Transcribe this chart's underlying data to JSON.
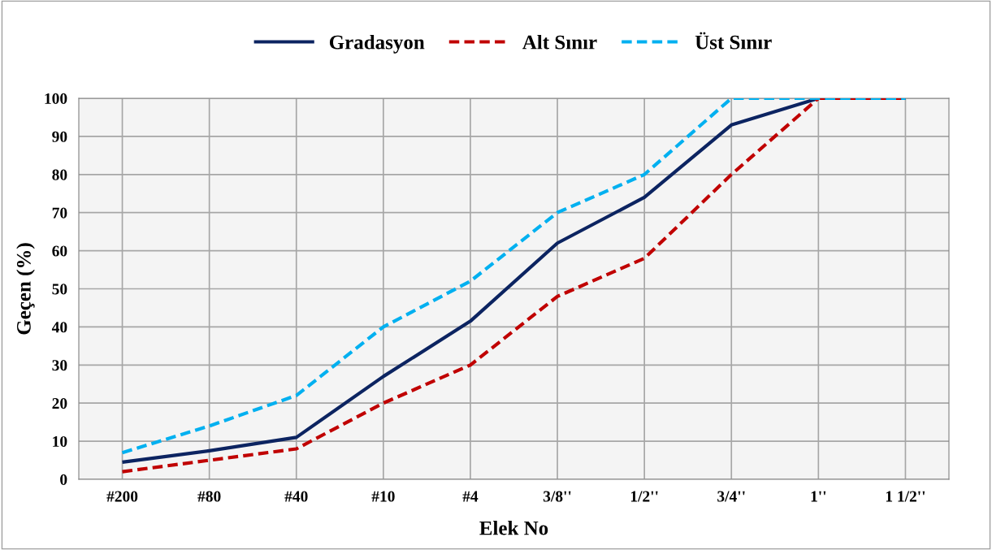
{
  "chart_data": {
    "type": "line",
    "xlabel": "Elek No",
    "ylabel": "Geçen (%)",
    "categories": [
      "#200",
      "#80",
      "#40",
      "#10",
      "#4",
      "3/8''",
      "1/2''",
      "3/4''",
      "1''",
      "1 1/2''"
    ],
    "series": [
      {
        "name": "Gradasyon",
        "color": "#0c2461",
        "line_style": "solid",
        "values": [
          4.5,
          7.5,
          11,
          27,
          41.5,
          62,
          74,
          93,
          100,
          100
        ]
      },
      {
        "name": "Alt Sınır",
        "color": "#c00000",
        "line_style": "dashed",
        "values": [
          2,
          5,
          8,
          20,
          30,
          48,
          58,
          80,
          100,
          100
        ]
      },
      {
        "name": "Üst Sınır",
        "color": "#00b0f0",
        "line_style": "dashed",
        "values": [
          7,
          14,
          22,
          40,
          52,
          70,
          80,
          100,
          100,
          100
        ]
      }
    ],
    "ylim": [
      0,
      100
    ],
    "yticks": [
      0,
      10,
      20,
      30,
      40,
      50,
      60,
      70,
      80,
      90,
      100
    ],
    "grid": true,
    "legend": "top",
    "marker": "none"
  }
}
